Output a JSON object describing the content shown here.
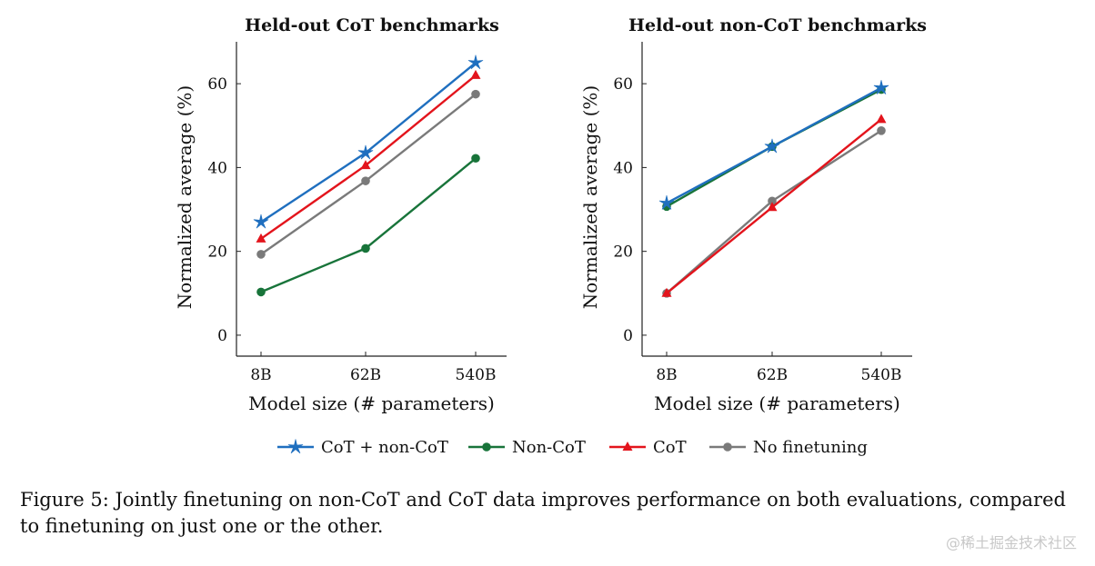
{
  "figure": {
    "caption": "Figure 5: Jointly finetuning on non-CoT and CoT data improves performance on both evaluations, compared to finetuning on just one or the other.",
    "watermark": "@稀土掘金技术社区"
  },
  "colors": {
    "CoT + non-CoT": "#1f6fbf",
    "Non-CoT": "#18743a",
    "CoT": "#e3141c",
    "No finetuning": "#7a7a7a"
  },
  "legend": {
    "placement": "bottom-center",
    "entries": [
      {
        "name": "CoT + non-CoT",
        "marker": "star"
      },
      {
        "name": "Non-CoT",
        "marker": "circle"
      },
      {
        "name": "CoT",
        "marker": "triangle"
      },
      {
        "name": "No finetuning",
        "marker": "circle"
      }
    ]
  },
  "chart_data": [
    {
      "type": "line",
      "title": "Held-out CoT benchmarks",
      "xlabel": "Model size (# parameters)",
      "ylabel": "Normalized average (%)",
      "categories": [
        "8B",
        "62B",
        "540B"
      ],
      "ylim": [
        -5,
        70
      ],
      "yticks": [
        0,
        20,
        40,
        60
      ],
      "grid": false,
      "series": [
        {
          "name": "CoT + non-CoT",
          "marker": "star",
          "values": [
            27,
            43.5,
            65
          ]
        },
        {
          "name": "Non-CoT",
          "marker": "circle",
          "values": [
            10.3,
            20.7,
            42.2
          ]
        },
        {
          "name": "CoT",
          "marker": "triangle",
          "values": [
            23,
            40.5,
            62
          ]
        },
        {
          "name": "No finetuning",
          "marker": "circle",
          "values": [
            19.3,
            36.8,
            57.5
          ]
        }
      ]
    },
    {
      "type": "line",
      "title": "Held-out non-CoT benchmarks",
      "xlabel": "Model size (# parameters)",
      "ylabel": "Normalized average (%)",
      "categories": [
        "8B",
        "62B",
        "540B"
      ],
      "ylim": [
        -5,
        70
      ],
      "yticks": [
        0,
        20,
        40,
        60
      ],
      "grid": false,
      "series": [
        {
          "name": "CoT + non-CoT",
          "marker": "star",
          "values": [
            31.5,
            45,
            59
          ]
        },
        {
          "name": "Non-CoT",
          "marker": "circle",
          "values": [
            30.7,
            45,
            58.6
          ]
        },
        {
          "name": "CoT",
          "marker": "triangle",
          "values": [
            10,
            30.5,
            51.5
          ]
        },
        {
          "name": "No finetuning",
          "marker": "circle",
          "values": [
            10,
            32,
            48.8
          ]
        }
      ]
    }
  ]
}
